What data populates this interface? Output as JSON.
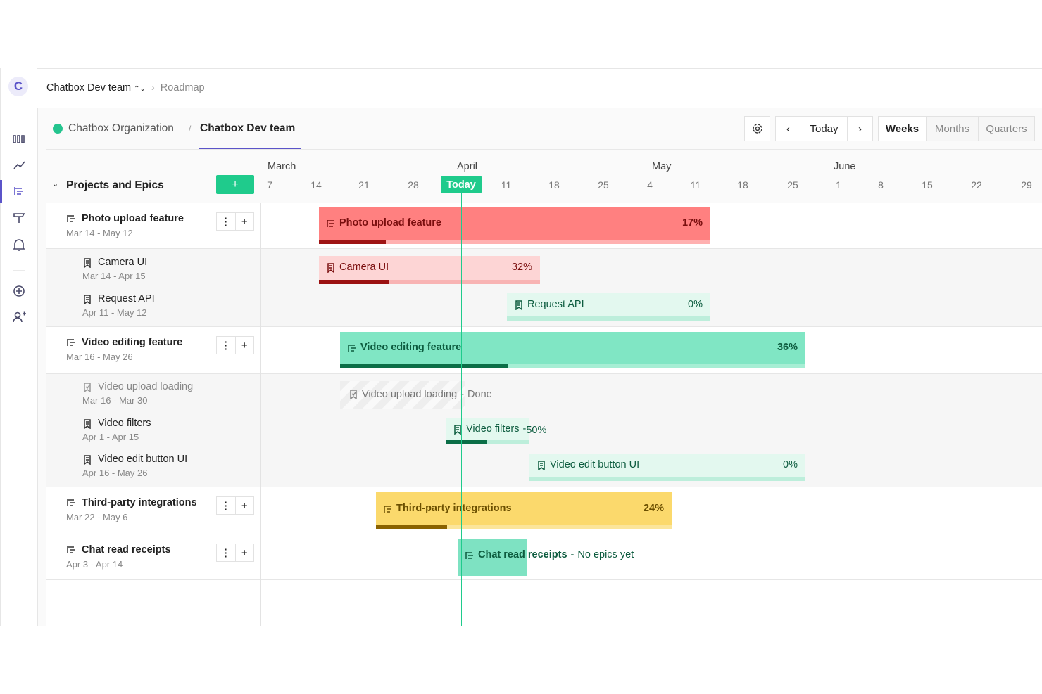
{
  "workspace": {
    "avatar": "C",
    "team": "Chatbox Dev team",
    "page": "Roadmap"
  },
  "breadcrumb": {
    "org": "Chatbox Organization",
    "separator": "/",
    "team": "Chatbox Dev team"
  },
  "toolbar": {
    "today": "Today",
    "views": [
      "Weeks",
      "Months",
      "Quarters"
    ]
  },
  "panel": {
    "title": "Projects and Epics",
    "add": "+"
  },
  "timeline": {
    "months": [
      "March",
      "April",
      "May",
      "June"
    ],
    "days": [
      "7",
      "14",
      "21",
      "28",
      "Today",
      "11",
      "18",
      "25",
      "4",
      "11",
      "18",
      "25",
      "1",
      "8",
      "15",
      "22",
      "29"
    ],
    "separator": "-"
  },
  "projects": [
    {
      "name": "Photo upload feature",
      "dates": "Mar 14 - May 12",
      "progress": "17%",
      "children": [
        {
          "name": "Camera UI",
          "dates": "Mar 14 - Apr 15",
          "progress": "32%"
        },
        {
          "name": "Request API",
          "dates": "Apr 11 - May 12",
          "progress": "0%"
        }
      ]
    },
    {
      "name": "Video editing feature",
      "dates": "Mar 16 - May 26",
      "progress": "36%",
      "children": [
        {
          "name": "Video upload loading",
          "dates": "Mar 16 - Mar 30",
          "note": "Done"
        },
        {
          "name": "Video filters",
          "dates": "Apr 1 - Apr 15",
          "progress": "50%"
        },
        {
          "name": "Video edit button UI",
          "dates": "Apr 16 - May 26",
          "progress": "0%"
        }
      ]
    },
    {
      "name": "Third-party integrations",
      "dates": "Mar 22 - May 6",
      "progress": "24%",
      "children": []
    },
    {
      "name": "Chat read receipts",
      "dates": "Apr 3 - Apr 14",
      "note": "No epics yet",
      "children": []
    }
  ]
}
